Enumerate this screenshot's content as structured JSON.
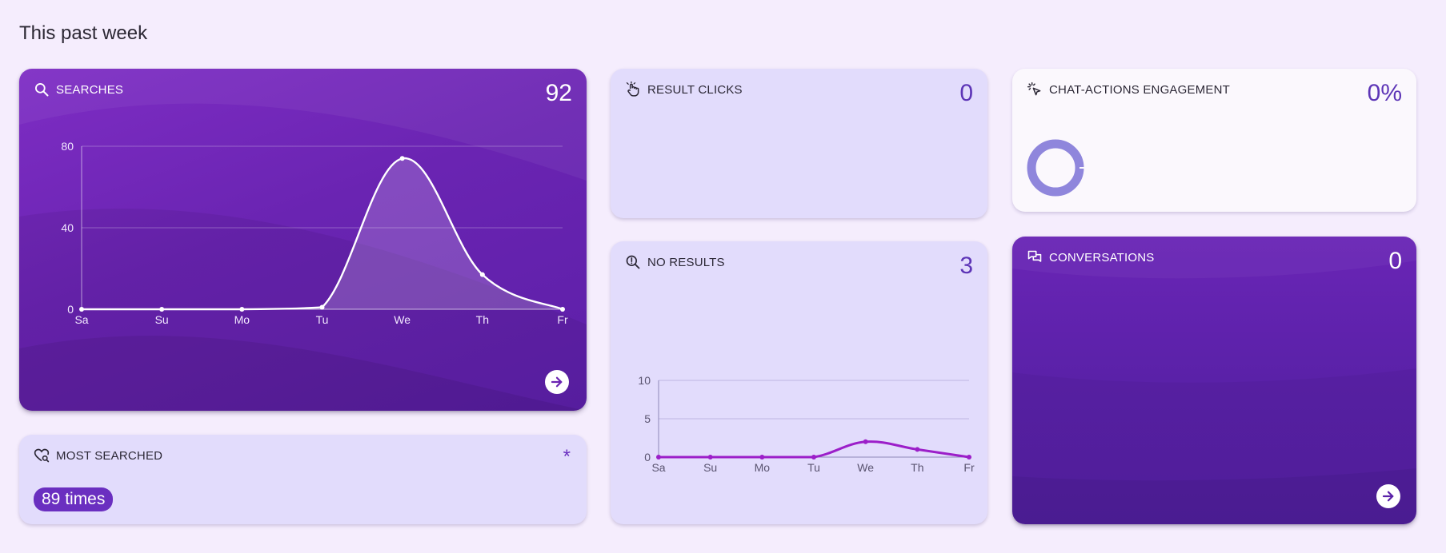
{
  "page": {
    "title": "This past week"
  },
  "cards": {
    "searches": {
      "label": "SEARCHES",
      "value": "92",
      "icon": "search-icon"
    },
    "result_clicks": {
      "label": "RESULT CLICKS",
      "value": "0",
      "icon": "hand-pointer-icon"
    },
    "chat_actions": {
      "label": "CHAT-ACTIONS ENGAGEMENT",
      "value": "0%",
      "icon": "sparkle-click-icon",
      "ring_fraction": 0
    },
    "no_results": {
      "label": "NO RESULTS",
      "value": "3",
      "icon": "search-alert-icon"
    },
    "conversations": {
      "label": "CONVERSATIONS",
      "value": "0",
      "icon": "chat-bubbles-icon"
    },
    "most_searched": {
      "label": "MOST SEARCHED",
      "value": "89 times",
      "marker": "*",
      "icon": "heart-search-icon"
    }
  },
  "chart_data": [
    {
      "type": "area",
      "categories": [
        "Sa",
        "Su",
        "Mo",
        "Tu",
        "We",
        "Th",
        "Fr"
      ],
      "values": [
        0,
        0,
        0,
        1,
        74,
        17,
        0
      ],
      "yticks": [
        0,
        40,
        80
      ],
      "ylim": [
        0,
        80
      ],
      "line_color": "#ffffff"
    },
    {
      "type": "line",
      "categories": [
        "Sa",
        "Su",
        "Mo",
        "Tu",
        "We",
        "Th",
        "Fr"
      ],
      "values": [
        0,
        0,
        0,
        0,
        2,
        1,
        0
      ],
      "yticks": [
        0,
        5,
        10
      ],
      "ylim": [
        0,
        10
      ],
      "line_color": "#9c1fc9"
    }
  ]
}
